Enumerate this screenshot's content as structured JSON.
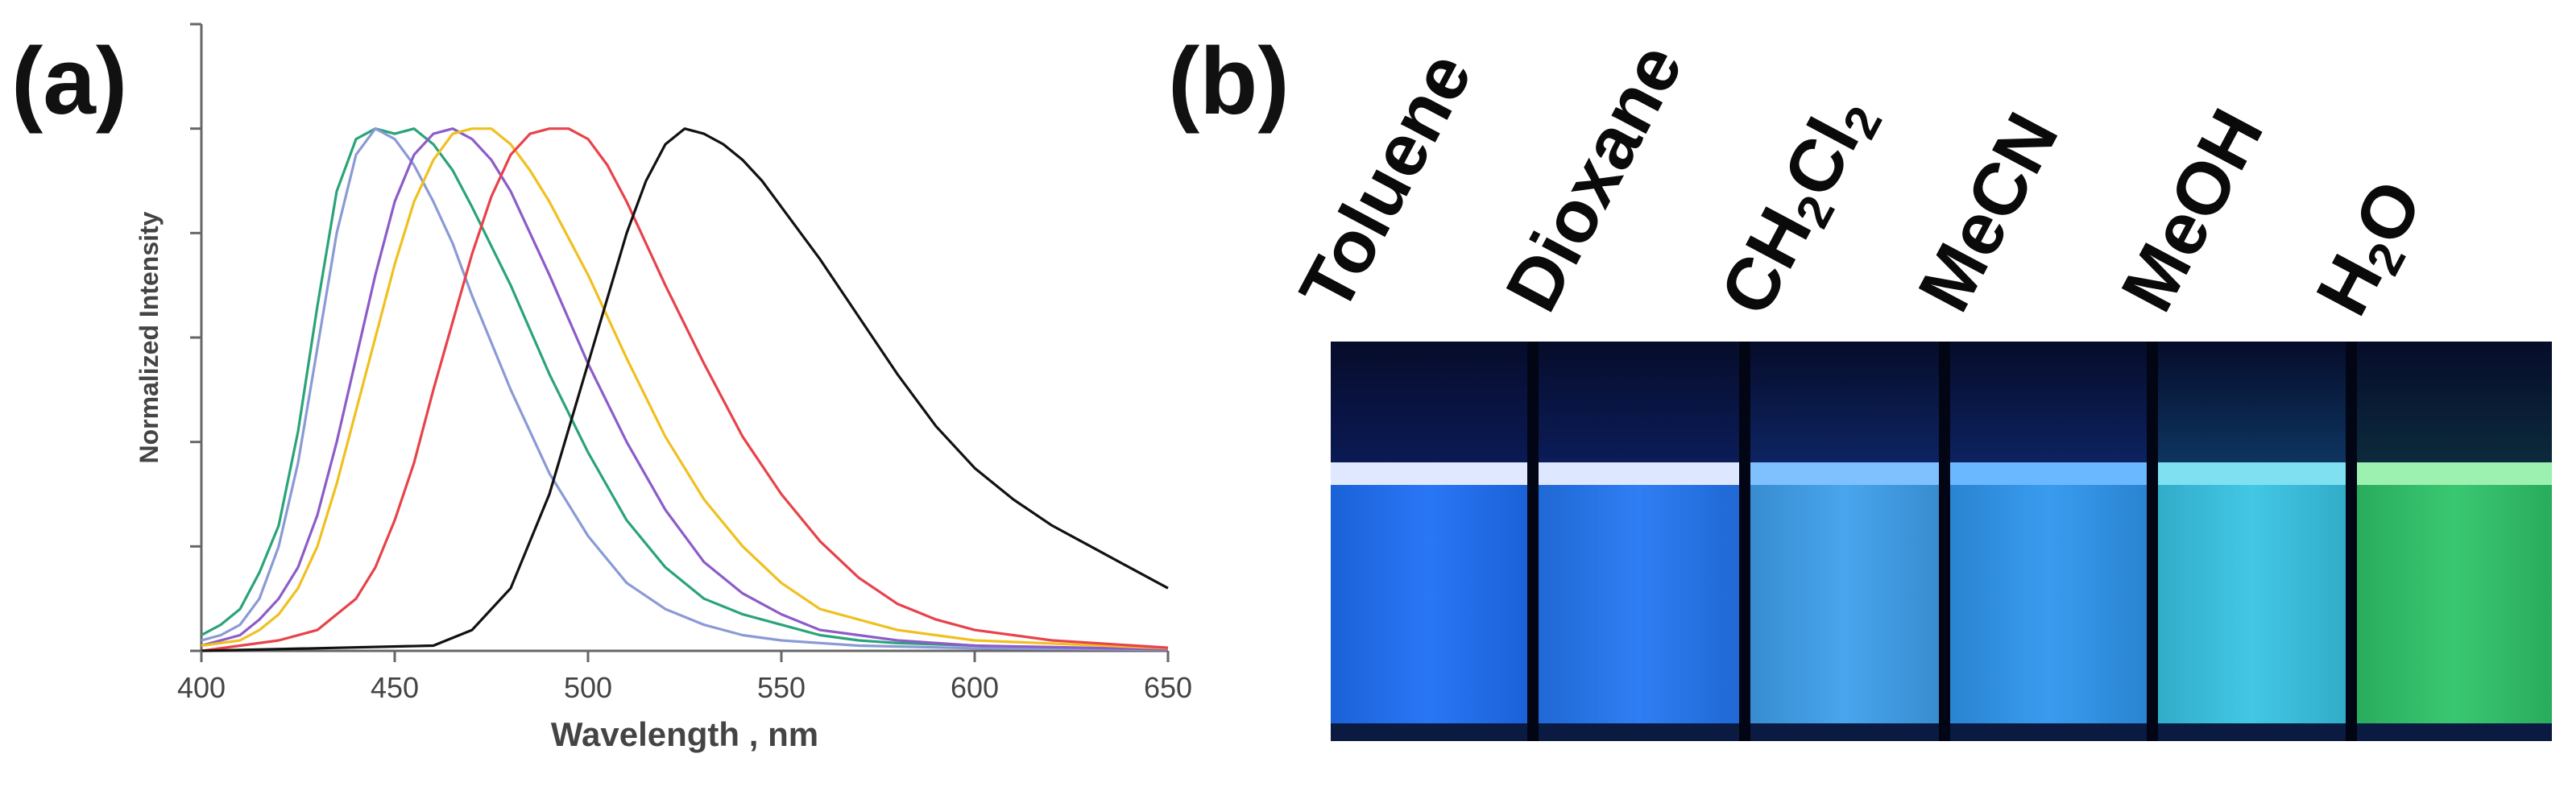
{
  "panel_a": {
    "label": "(a)"
  },
  "panel_b": {
    "label": "(b)"
  },
  "chart_data": {
    "type": "line",
    "title": "",
    "xlabel": "Wavelength , nm",
    "ylabel": "Normalized Intensity",
    "xlim": [
      400,
      650
    ],
    "ylim": [
      0,
      1.2
    ],
    "xticks": [
      "400",
      "450",
      "500",
      "550",
      "600",
      "650"
    ],
    "yticks_count": 7,
    "grid": false,
    "series": [
      {
        "color": "#2aa37a",
        "x": [
          400,
          405,
          410,
          415,
          420,
          425,
          430,
          435,
          440,
          445,
          450,
          455,
          460,
          465,
          470,
          480,
          490,
          500,
          510,
          520,
          530,
          540,
          550,
          560,
          570,
          580,
          600,
          620,
          650
        ],
        "y": [
          0.03,
          0.05,
          0.08,
          0.15,
          0.24,
          0.42,
          0.66,
          0.88,
          0.98,
          1.0,
          0.99,
          1.0,
          0.97,
          0.92,
          0.85,
          0.7,
          0.53,
          0.38,
          0.25,
          0.16,
          0.1,
          0.07,
          0.05,
          0.03,
          0.02,
          0.015,
          0.01,
          0.005,
          0.002
        ]
      },
      {
        "color": "#8a9ad6",
        "x": [
          400,
          405,
          410,
          415,
          420,
          425,
          430,
          435,
          440,
          445,
          450,
          455,
          460,
          465,
          470,
          480,
          490,
          500,
          510,
          520,
          530,
          540,
          550,
          560,
          570,
          600,
          650
        ],
        "y": [
          0.02,
          0.03,
          0.05,
          0.1,
          0.2,
          0.36,
          0.58,
          0.8,
          0.95,
          1.0,
          0.98,
          0.93,
          0.86,
          0.78,
          0.68,
          0.5,
          0.34,
          0.22,
          0.13,
          0.08,
          0.05,
          0.03,
          0.02,
          0.015,
          0.01,
          0.005,
          0.002
        ]
      },
      {
        "color": "#8c5cc8",
        "x": [
          400,
          410,
          415,
          420,
          425,
          430,
          435,
          440,
          445,
          450,
          455,
          460,
          465,
          470,
          475,
          480,
          490,
          500,
          510,
          520,
          530,
          540,
          550,
          560,
          570,
          580,
          600,
          650
        ],
        "y": [
          0.01,
          0.03,
          0.06,
          0.1,
          0.16,
          0.26,
          0.4,
          0.56,
          0.72,
          0.86,
          0.95,
          0.99,
          1.0,
          0.98,
          0.94,
          0.88,
          0.72,
          0.55,
          0.4,
          0.27,
          0.17,
          0.11,
          0.07,
          0.04,
          0.03,
          0.02,
          0.01,
          0.003
        ]
      },
      {
        "color": "#f0c020",
        "x": [
          400,
          410,
          415,
          420,
          425,
          430,
          435,
          440,
          445,
          450,
          455,
          460,
          465,
          470,
          475,
          480,
          485,
          490,
          500,
          510,
          520,
          530,
          540,
          550,
          560,
          580,
          600,
          650
        ],
        "y": [
          0.01,
          0.02,
          0.04,
          0.07,
          0.12,
          0.2,
          0.32,
          0.46,
          0.6,
          0.74,
          0.86,
          0.94,
          0.99,
          1.0,
          1.0,
          0.97,
          0.92,
          0.86,
          0.72,
          0.56,
          0.41,
          0.29,
          0.2,
          0.13,
          0.08,
          0.04,
          0.02,
          0.005
        ]
      },
      {
        "color": "#e8424a",
        "x": [
          400,
          420,
          430,
          440,
          445,
          450,
          455,
          460,
          465,
          470,
          475,
          480,
          485,
          490,
          495,
          500,
          505,
          510,
          520,
          530,
          540,
          550,
          560,
          570,
          580,
          590,
          600,
          620,
          650
        ],
        "y": [
          0.0,
          0.02,
          0.04,
          0.1,
          0.16,
          0.25,
          0.36,
          0.5,
          0.63,
          0.76,
          0.87,
          0.95,
          0.99,
          1.0,
          1.0,
          0.98,
          0.93,
          0.86,
          0.7,
          0.55,
          0.41,
          0.3,
          0.21,
          0.14,
          0.09,
          0.06,
          0.04,
          0.02,
          0.006
        ]
      },
      {
        "color": "#111111",
        "x": [
          400,
          460,
          470,
          480,
          490,
          500,
          510,
          515,
          520,
          525,
          530,
          535,
          540,
          545,
          550,
          560,
          570,
          580,
          590,
          600,
          610,
          620,
          630,
          640,
          650
        ],
        "y": [
          0.0,
          0.01,
          0.04,
          0.12,
          0.3,
          0.55,
          0.8,
          0.9,
          0.97,
          1.0,
          0.99,
          0.97,
          0.94,
          0.9,
          0.85,
          0.75,
          0.64,
          0.53,
          0.43,
          0.35,
          0.29,
          0.24,
          0.2,
          0.16,
          0.12
        ]
      }
    ]
  },
  "vials": [
    {
      "label": "Toluene",
      "sub": "",
      "label_suffix": "",
      "liquid_color": "#1e6ff5",
      "top_color": "#0b1a55",
      "meniscus_color": "#dfe8ff"
    },
    {
      "label": "Dioxane",
      "sub": "",
      "label_suffix": "",
      "liquid_color": "#2477f2",
      "top_color": "#0b1c58",
      "meniscus_color": "#dde7ff"
    },
    {
      "label": "CH",
      "sub": "2",
      "label_suffix": "Cl₂",
      "liquid_color": "#3fa0ec",
      "top_color": "#0d2462",
      "meniscus_color": "#7fc0ff"
    },
    {
      "label": "MeCN",
      "sub": "",
      "label_suffix": "",
      "liquid_color": "#2f96ee",
      "top_color": "#0c2260",
      "meniscus_color": "#6ab8ff"
    },
    {
      "label": "MeOH",
      "sub": "",
      "label_suffix": "",
      "liquid_color": "#38c4e4",
      "top_color": "#0d3560",
      "meniscus_color": "#7ee0f0"
    },
    {
      "label": "H",
      "sub": "2",
      "label_suffix": "O",
      "liquid_color": "#2fc46a",
      "top_color": "#0c2a3c",
      "meniscus_color": "#9cf0b0"
    }
  ]
}
